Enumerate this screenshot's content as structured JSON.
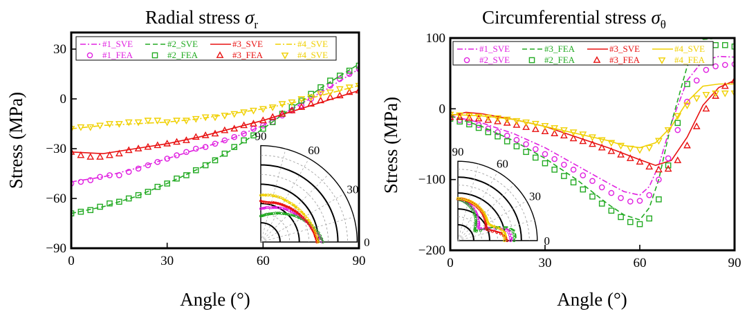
{
  "figure": {
    "xlabel": "Angle (°)",
    "ylabel": "Stress (MPa)"
  },
  "chart_data": [
    {
      "type": "line",
      "title_main": "Radial stress ",
      "title_symbol": "σ",
      "title_sub": "r",
      "xlabel": "Angle (°)",
      "ylabel": "Stress (MPa)",
      "xlim": [
        0,
        90
      ],
      "ylim": [
        -90,
        40
      ],
      "xticks": [
        "0",
        "30",
        "60",
        "90"
      ],
      "yticks": [
        "−90",
        "−60",
        "−30",
        "0",
        "30"
      ],
      "ytick_values": [
        -90,
        -60,
        -30,
        0,
        30
      ],
      "xtick_values": [
        0,
        30,
        60,
        90
      ],
      "legend_rows": [
        [
          "#1_SVE",
          "#2_SVE",
          "#3_SVE",
          "#4_SVE"
        ],
        [
          "#1_FEA",
          "#2_FEA",
          "#3_FEA",
          "#4_SVE"
        ]
      ],
      "series": [
        {
          "name": "#1_SVE",
          "kind": "line",
          "color": "#e020e0",
          "dash": "8,3,2,3",
          "x": [
            0,
            10,
            20,
            30,
            40,
            50,
            60,
            70,
            80,
            90
          ],
          "y": [
            -50,
            -47,
            -42,
            -36,
            -30,
            -24,
            -16,
            -5,
            6,
            18
          ]
        },
        {
          "name": "#2_SVE",
          "kind": "line",
          "color": "#22aa22",
          "dash": "7,4",
          "x": [
            0,
            10,
            20,
            30,
            40,
            50,
            60,
            70,
            80,
            90
          ],
          "y": [
            -69,
            -65,
            -59,
            -51,
            -42,
            -31,
            -18,
            -4,
            9,
            21
          ]
        },
        {
          "name": "#3_SVE",
          "kind": "line",
          "color": "#e81010",
          "dash": "",
          "x": [
            0,
            10,
            20,
            30,
            40,
            50,
            60,
            70,
            80,
            90
          ],
          "y": [
            -32,
            -33,
            -30,
            -27,
            -23,
            -18,
            -13,
            -7,
            -1,
            5
          ]
        },
        {
          "name": "#4_SVE",
          "kind": "line",
          "color": "#f0d000",
          "dash": "8,3,2,3",
          "x": [
            0,
            10,
            20,
            30,
            40,
            50,
            60,
            70,
            80,
            90
          ],
          "y": [
            -18,
            -16,
            -15,
            -14,
            -12,
            -9,
            -6,
            -2,
            3,
            8
          ]
        },
        {
          "name": "#1_FEA",
          "kind": "marker",
          "marker": "circle",
          "color": "#e020e0",
          "x": [
            0,
            3,
            6,
            9,
            12,
            15,
            18,
            21,
            24,
            27,
            30,
            33,
            36,
            39,
            42,
            45,
            48,
            51,
            54,
            57,
            60,
            63,
            66,
            69,
            72,
            75,
            78,
            81,
            84,
            87,
            90
          ],
          "y": [
            -51,
            -50,
            -49,
            -47,
            -46,
            -46,
            -44,
            -42,
            -40,
            -38,
            -36,
            -34,
            -32,
            -30,
            -29,
            -27,
            -25,
            -23,
            -21,
            -18,
            -16,
            -14,
            -10,
            -7,
            -4,
            0,
            4,
            8,
            12,
            15,
            18
          ]
        },
        {
          "name": "#2_FEA",
          "kind": "marker",
          "marker": "square",
          "color": "#22aa22",
          "x": [
            0,
            3,
            6,
            9,
            12,
            15,
            18,
            21,
            24,
            27,
            30,
            33,
            36,
            39,
            42,
            45,
            48,
            51,
            54,
            57,
            60,
            63,
            66,
            69,
            72,
            75,
            78,
            81,
            84,
            87,
            90
          ],
          "y": [
            -69,
            -68,
            -67,
            -65,
            -63,
            -62,
            -60,
            -58,
            -56,
            -53,
            -51,
            -48,
            -46,
            -43,
            -40,
            -37,
            -33,
            -29,
            -25,
            -22,
            -18,
            -14,
            -9,
            -5,
            -1,
            3,
            7,
            11,
            14,
            17,
            20
          ]
        },
        {
          "name": "#3_FEA",
          "kind": "marker",
          "marker": "triangle",
          "color": "#e81010",
          "x": [
            0,
            3,
            6,
            9,
            12,
            15,
            18,
            21,
            24,
            27,
            30,
            33,
            36,
            39,
            42,
            45,
            48,
            51,
            54,
            57,
            60,
            63,
            66,
            69,
            72,
            75,
            78,
            81,
            84,
            87,
            90
          ],
          "y": [
            -32,
            -34,
            -35,
            -35,
            -34,
            -33,
            -31,
            -30,
            -29,
            -28,
            -27,
            -26,
            -25,
            -23,
            -22,
            -21,
            -19,
            -18,
            -16,
            -15,
            -13,
            -11,
            -9,
            -7,
            -5,
            -3,
            -1,
            1,
            2,
            4,
            5
          ]
        },
        {
          "name": "#4_SVE",
          "kind": "marker",
          "marker": "triangle-down",
          "color": "#f0d000",
          "x": [
            0,
            3,
            6,
            9,
            12,
            15,
            18,
            21,
            24,
            27,
            30,
            33,
            36,
            39,
            42,
            45,
            48,
            51,
            54,
            57,
            60,
            63,
            66,
            69,
            72,
            75,
            78,
            81,
            84,
            87,
            90
          ],
          "y": [
            -18,
            -17,
            -17,
            -16,
            -15,
            -15,
            -14,
            -14,
            -13,
            -13,
            -14,
            -13,
            -13,
            -12,
            -11,
            -11,
            -10,
            -9,
            -8,
            -7,
            -6,
            -5,
            -3,
            -2,
            0,
            1,
            3,
            4,
            6,
            7,
            8
          ]
        }
      ],
      "polar_inset": {
        "angle_labels": [
          "90",
          "60",
          "30",
          "0"
        ],
        "angle_values": [
          90,
          60,
          30,
          0
        ]
      }
    },
    {
      "type": "line",
      "title_main": "Circumferential stress ",
      "title_symbol": "σ",
      "title_sub": "θ",
      "xlabel": "Angle (°)",
      "ylabel": "Stress (MPa)",
      "xlim": [
        0,
        90
      ],
      "ylim": [
        -200,
        100
      ],
      "xticks": [
        "0",
        "30",
        "60",
        "90"
      ],
      "yticks": [
        "−200",
        "−100",
        "0",
        "100"
      ],
      "ytick_values": [
        -200,
        -100,
        0,
        100
      ],
      "xtick_values": [
        0,
        30,
        60,
        90
      ],
      "legend_rows": [
        [
          "#1_SVE",
          "#3_FEA",
          "#3_SVE",
          "#4_SVE"
        ],
        [
          "#2_SVE",
          "#2_FEA",
          "#3_FEA",
          "#4_FEA"
        ]
      ],
      "series": [
        {
          "name": "#1_SVE",
          "kind": "line",
          "color": "#e020e0",
          "dash": "8,3,2,3",
          "x": [
            0,
            10,
            20,
            30,
            40,
            50,
            55,
            60,
            63,
            66,
            70,
            75,
            80,
            85,
            90
          ],
          "y": [
            -10,
            -20,
            -35,
            -55,
            -80,
            -105,
            -117,
            -122,
            -110,
            -80,
            -20,
            40,
            68,
            74,
            73
          ]
        },
        {
          "name": "#3_FEA",
          "kind": "line",
          "color": "#22aa22",
          "dash": "7,4",
          "x": [
            0,
            10,
            20,
            30,
            40,
            50,
            55,
            60,
            63,
            66,
            70,
            75,
            80,
            85,
            90
          ],
          "y": [
            -10,
            -25,
            -45,
            -70,
            -100,
            -135,
            -150,
            -157,
            -140,
            -100,
            -20,
            60,
            98,
            100,
            100
          ]
        },
        {
          "name": "#3_SVE",
          "kind": "line",
          "color": "#e81010",
          "dash": "",
          "x": [
            0,
            5,
            10,
            20,
            30,
            40,
            50,
            60,
            65,
            70,
            75,
            80,
            85,
            90
          ],
          "y": [
            -10,
            -5,
            -7,
            -15,
            -25,
            -40,
            -55,
            -72,
            -80,
            -73,
            -40,
            5,
            30,
            40
          ]
        },
        {
          "name": "#4_SVE",
          "kind": "line",
          "color": "#f0d000",
          "dash": "",
          "x": [
            0,
            10,
            20,
            30,
            40,
            50,
            55,
            60,
            65,
            70,
            75,
            80,
            85,
            90
          ],
          "y": [
            -8,
            -10,
            -15,
            -25,
            -35,
            -45,
            -52,
            -55,
            -48,
            -25,
            10,
            32,
            35,
            35
          ]
        },
        {
          "name": "#2_SVE",
          "kind": "marker",
          "marker": "circle",
          "color": "#e020e0",
          "x": [
            0,
            3,
            6,
            9,
            12,
            15,
            18,
            21,
            24,
            27,
            30,
            33,
            36,
            39,
            42,
            45,
            48,
            51,
            54,
            57,
            60,
            63,
            66,
            69,
            72,
            75,
            78,
            81,
            84,
            87,
            90
          ],
          "y": [
            -13,
            -16,
            -19,
            -23,
            -28,
            -33,
            -38,
            -44,
            -50,
            -57,
            -64,
            -71,
            -79,
            -86,
            -94,
            -102,
            -111,
            -119,
            -126,
            -131,
            -130,
            -122,
            -100,
            -70,
            -30,
            10,
            40,
            55,
            60,
            62,
            63
          ]
        },
        {
          "name": "#2_FEA",
          "kind": "marker",
          "marker": "square",
          "color": "#22aa22",
          "x": [
            0,
            3,
            6,
            9,
            12,
            15,
            18,
            21,
            24,
            27,
            30,
            33,
            36,
            39,
            42,
            45,
            48,
            51,
            54,
            57,
            60,
            63,
            66,
            69,
            72,
            75,
            78,
            81,
            84,
            87,
            90
          ],
          "y": [
            -14,
            -18,
            -22,
            -27,
            -33,
            -39,
            -46,
            -53,
            -61,
            -69,
            -77,
            -86,
            -95,
            -104,
            -114,
            -124,
            -134,
            -144,
            -153,
            -160,
            -163,
            -155,
            -128,
            -80,
            -20,
            35,
            70,
            85,
            90,
            90,
            88
          ]
        },
        {
          "name": "#3_FEA",
          "kind": "marker",
          "marker": "triangle",
          "color": "#e81010",
          "x": [
            0,
            3,
            6,
            9,
            12,
            15,
            18,
            21,
            24,
            27,
            30,
            33,
            36,
            39,
            42,
            45,
            48,
            51,
            54,
            57,
            60,
            63,
            66,
            69,
            72,
            75,
            78,
            81,
            84,
            87,
            90
          ],
          "y": [
            -12,
            -12,
            -13,
            -14,
            -16,
            -18,
            -20,
            -23,
            -26,
            -29,
            -32,
            -35,
            -38,
            -42,
            -46,
            -50,
            -55,
            -60,
            -65,
            -70,
            -75,
            -82,
            -86,
            -85,
            -73,
            -52,
            -25,
            0,
            18,
            32,
            40
          ]
        },
        {
          "name": "#4_FEA",
          "kind": "marker",
          "marker": "triangle-down",
          "color": "#f0d000",
          "x": [
            0,
            3,
            6,
            9,
            12,
            15,
            18,
            21,
            24,
            27,
            30,
            33,
            36,
            39,
            42,
            45,
            48,
            51,
            54,
            57,
            60,
            63,
            66,
            69,
            72,
            75,
            78,
            81,
            84,
            87,
            90
          ],
          "y": [
            -8,
            -9,
            -10,
            -11,
            -12,
            -13,
            -15,
            -17,
            -19,
            -21,
            -24,
            -27,
            -30,
            -33,
            -36,
            -40,
            -44,
            -48,
            -52,
            -56,
            -58,
            -55,
            -45,
            -30,
            -10,
            5,
            15,
            20,
            22,
            22,
            22
          ]
        }
      ],
      "polar_inset": {
        "angle_labels": [
          "90",
          "60",
          "30",
          "0"
        ],
        "angle_values": [
          90,
          60,
          30,
          0
        ]
      }
    }
  ]
}
